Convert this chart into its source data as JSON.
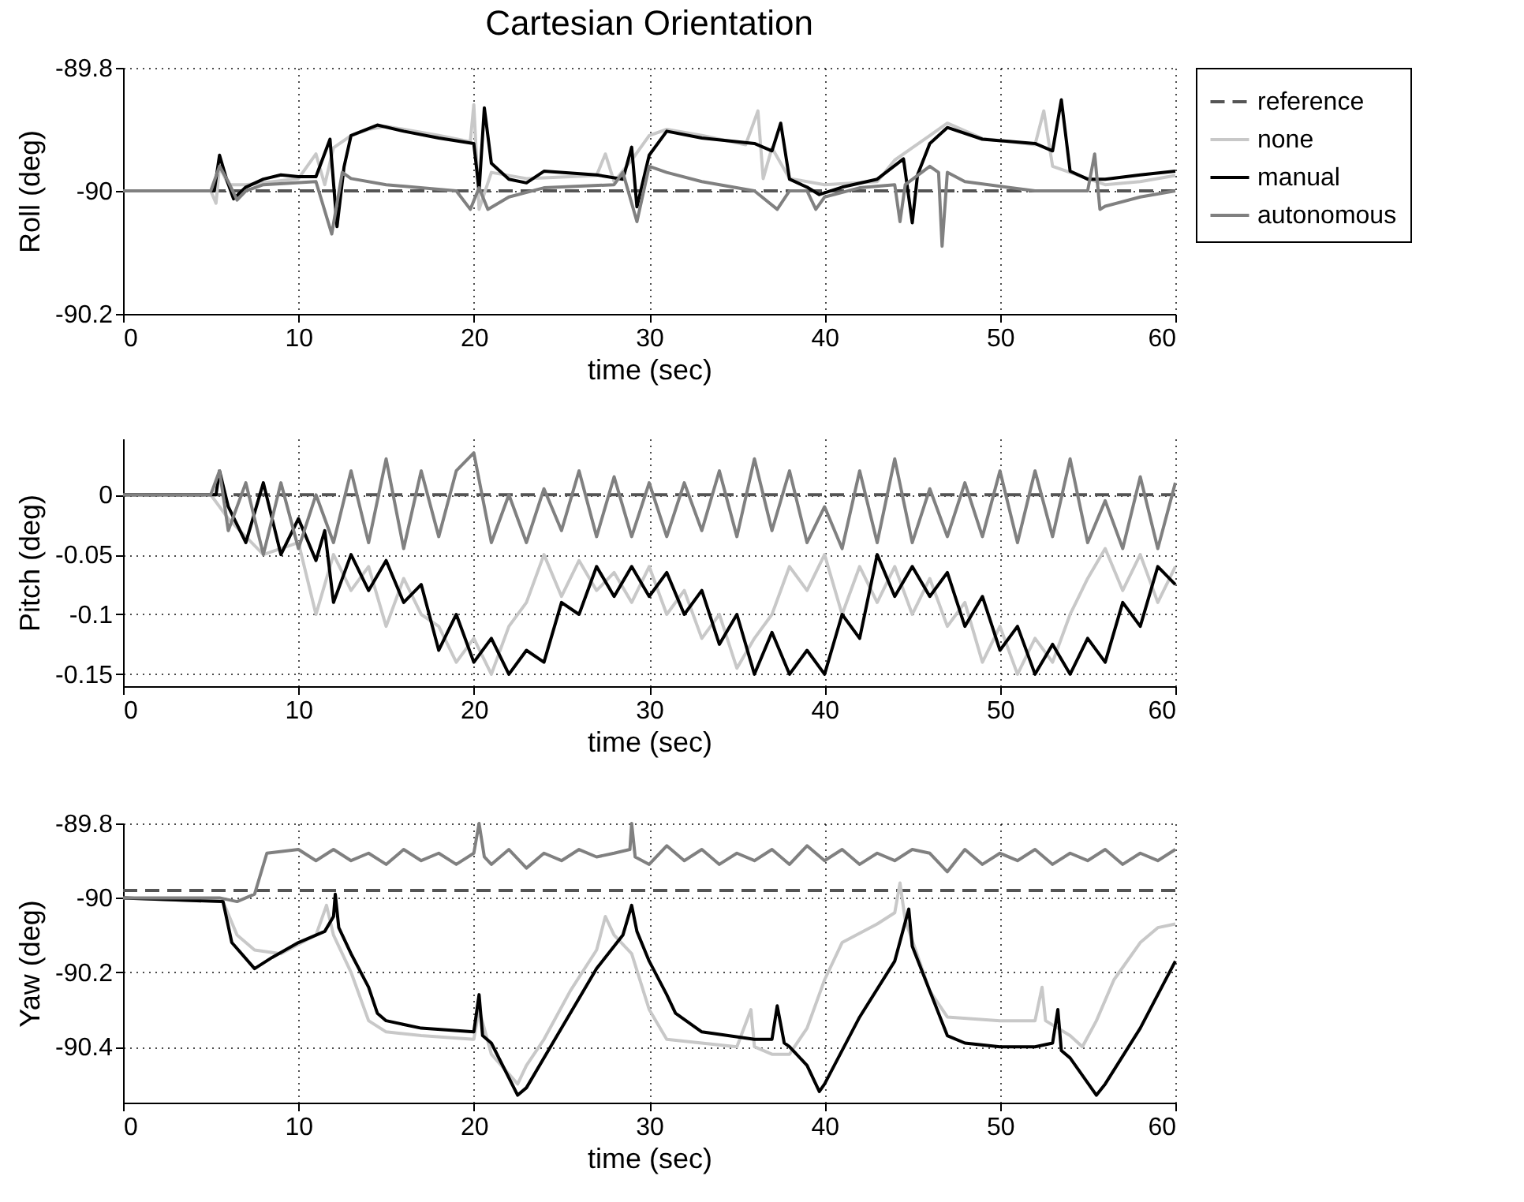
{
  "chart_data": [
    {
      "type": "line",
      "title": "Cartesian Orientation",
      "xlabel": "time (sec)",
      "ylabel": "Roll (deg)",
      "xlim": [
        0,
        60
      ],
      "xticks": [
        0,
        10,
        20,
        30,
        40,
        50,
        60
      ],
      "ylim": [
        -90.2,
        -89.8
      ],
      "yticks": [
        -90.2,
        -90,
        -89.8
      ],
      "grid": true,
      "legend": "top right",
      "series": [
        {
          "name": "reference",
          "color": "#555555",
          "line_style": "dashed",
          "x": [
            0,
            60
          ],
          "values": [
            -90,
            -90
          ]
        },
        {
          "name": "none",
          "color": "#c8c8c8",
          "line_style": "solid",
          "x": [
            0,
            5,
            5.3,
            5.5,
            6,
            7,
            10,
            11,
            11.5,
            12,
            13,
            14,
            15,
            18,
            19.8,
            20,
            20.3,
            21,
            23,
            27,
            27.5,
            28,
            29,
            30,
            31,
            33,
            35.5,
            36.2,
            36.5,
            37,
            38,
            40,
            43,
            44,
            45,
            46,
            47,
            49,
            52,
            52.5,
            53,
            54,
            56,
            58,
            60
          ],
          "values": [
            -90,
            -90,
            -90.02,
            -89.96,
            -89.99,
            -89.99,
            -89.98,
            -89.94,
            -89.99,
            -89.93,
            -89.91,
            -89.9,
            -89.895,
            -89.91,
            -89.92,
            -89.86,
            -90.03,
            -89.97,
            -89.98,
            -89.975,
            -89.94,
            -89.985,
            -89.95,
            -89.91,
            -89.9,
            -89.91,
            -89.925,
            -89.87,
            -89.98,
            -89.93,
            -89.98,
            -89.99,
            -89.985,
            -89.95,
            -89.93,
            -89.91,
            -89.89,
            -89.915,
            -89.925,
            -89.87,
            -89.96,
            -89.97,
            -89.99,
            -89.985,
            -89.975
          ]
        },
        {
          "name": "manual",
          "color": "#000000",
          "line_style": "solid",
          "x": [
            0,
            5.2,
            5.5,
            5.9,
            6.3,
            7,
            8,
            9,
            10,
            11,
            11.8,
            12.2,
            12.6,
            13,
            14.5,
            16,
            18,
            20,
            20.3,
            20.6,
            21,
            22,
            23,
            24,
            27,
            28.5,
            29,
            29.3,
            30,
            31,
            33,
            36,
            37,
            37.5,
            38,
            39,
            39.7,
            41,
            43,
            44.5,
            45,
            45.3,
            46,
            47,
            49,
            52,
            53,
            53.5,
            54,
            55,
            56,
            58,
            60
          ],
          "values": [
            -90,
            -90,
            -89.942,
            -89.981,
            -90.013,
            -89.994,
            -89.981,
            -89.974,
            -89.977,
            -89.977,
            -89.916,
            -90.058,
            -89.961,
            -89.91,
            -89.893,
            -89.903,
            -89.914,
            -89.923,
            -90,
            -89.865,
            -89.955,
            -89.981,
            -89.987,
            -89.968,
            -89.974,
            -89.981,
            -89.929,
            -90.026,
            -89.942,
            -89.903,
            -89.914,
            -89.923,
            -89.935,
            -89.89,
            -89.981,
            -89.994,
            -90.006,
            -89.994,
            -89.981,
            -89.948,
            -90.052,
            -89.974,
            -89.923,
            -89.897,
            -89.916,
            -89.923,
            -89.935,
            -89.852,
            -89.968,
            -89.981,
            -89.981,
            -89.974,
            -89.968
          ]
        },
        {
          "name": "autonomous",
          "color": "#808080",
          "line_style": "solid",
          "x": [
            0,
            5,
            5.5,
            6,
            6.5,
            7,
            8,
            11,
            11.9,
            12.5,
            13,
            15,
            19,
            19.8,
            20.3,
            20.8,
            22,
            24,
            28,
            28.5,
            29.3,
            30,
            31,
            33,
            36,
            37.3,
            38,
            39,
            39.5,
            40,
            42,
            44,
            44.3,
            44.6,
            46,
            46.5,
            46.7,
            47,
            48,
            52,
            55,
            55.4,
            55.7,
            56,
            58,
            60
          ],
          "values": [
            -90,
            -90,
            -89.96,
            -89.985,
            -90.015,
            -90,
            -89.99,
            -89.985,
            -90.07,
            -89.97,
            -89.98,
            -89.99,
            -90,
            -90.03,
            -89.995,
            -90.03,
            -90.01,
            -89.995,
            -89.99,
            -89.97,
            -90.05,
            -89.96,
            -89.97,
            -89.985,
            -90,
            -90.03,
            -90,
            -90,
            -90.03,
            -90.01,
            -89.995,
            -89.99,
            -90.05,
            -89.99,
            -89.96,
            -89.97,
            -90.09,
            -89.97,
            -89.985,
            -90,
            -90,
            -89.94,
            -90.03,
            -90.025,
            -90.01,
            -90
          ]
        }
      ]
    },
    {
      "type": "line",
      "xlabel": "time (sec)",
      "ylabel": "Pitch (deg)",
      "xlim": [
        0,
        60
      ],
      "xticks": [
        0,
        10,
        20,
        30,
        40,
        50,
        60
      ],
      "ylim": [
        -0.16,
        0.047
      ],
      "yticks": [
        -0.15,
        -0.1,
        -0.05,
        0
      ],
      "grid": true,
      "series": [
        {
          "color": "#555555",
          "line_style": "dashed",
          "x": [
            0,
            60
          ],
          "values": [
            0,
            0
          ]
        },
        {
          "color": "#c8c8c8",
          "line_style": "solid",
          "x": [
            0,
            5,
            6,
            8,
            10,
            11,
            12,
            13,
            14,
            15,
            16,
            17,
            18,
            19,
            20,
            21,
            22,
            23,
            24,
            25,
            26,
            27,
            28,
            29,
            30,
            31,
            32,
            33,
            34,
            35,
            36,
            37,
            38,
            39,
            40,
            41,
            42,
            43,
            44,
            45,
            46,
            47,
            48,
            49,
            50,
            51,
            52,
            53,
            54,
            55,
            56,
            57,
            58,
            59,
            60
          ],
          "values": [
            0,
            0,
            -0.02,
            -0.05,
            -0.04,
            -0.1,
            -0.05,
            -0.08,
            -0.06,
            -0.11,
            -0.07,
            -0.1,
            -0.11,
            -0.14,
            -0.12,
            -0.15,
            -0.11,
            -0.09,
            -0.05,
            -0.085,
            -0.055,
            -0.08,
            -0.065,
            -0.09,
            -0.06,
            -0.1,
            -0.08,
            -0.12,
            -0.1,
            -0.145,
            -0.12,
            -0.1,
            -0.06,
            -0.08,
            -0.05,
            -0.1,
            -0.06,
            -0.09,
            -0.06,
            -0.1,
            -0.07,
            -0.11,
            -0.09,
            -0.14,
            -0.11,
            -0.15,
            -0.12,
            -0.14,
            -0.1,
            -0.07,
            -0.045,
            -0.08,
            -0.05,
            -0.09,
            -0.06
          ]
        },
        {
          "color": "#000000",
          "line_style": "solid",
          "x": [
            0,
            5.3,
            5.5,
            6,
            7,
            8,
            9,
            10,
            11,
            11.5,
            12,
            13,
            14,
            15,
            16,
            17,
            18,
            19,
            20,
            21,
            22,
            23,
            24,
            25,
            26,
            27,
            28,
            29,
            30,
            31,
            32,
            33,
            34,
            35,
            36,
            37,
            38,
            39,
            40,
            41,
            42,
            43,
            44,
            45,
            46,
            47,
            48,
            49,
            50,
            51,
            52,
            53,
            54,
            55,
            56,
            57,
            58,
            59,
            60
          ],
          "values": [
            0,
            0,
            0.02,
            -0.01,
            -0.04,
            0.01,
            -0.05,
            -0.02,
            -0.055,
            -0.03,
            -0.09,
            -0.05,
            -0.08,
            -0.055,
            -0.09,
            -0.075,
            -0.13,
            -0.1,
            -0.14,
            -0.12,
            -0.15,
            -0.13,
            -0.14,
            -0.09,
            -0.1,
            -0.06,
            -0.085,
            -0.06,
            -0.085,
            -0.065,
            -0.1,
            -0.08,
            -0.125,
            -0.1,
            -0.15,
            -0.115,
            -0.15,
            -0.13,
            -0.15,
            -0.1,
            -0.12,
            -0.05,
            -0.085,
            -0.06,
            -0.085,
            -0.065,
            -0.11,
            -0.085,
            -0.13,
            -0.11,
            -0.15,
            -0.125,
            -0.15,
            -0.12,
            -0.14,
            -0.09,
            -0.11,
            -0.06,
            -0.075
          ]
        },
        {
          "color": "#808080",
          "line_style": "solid",
          "x": [
            0,
            5,
            5.5,
            6,
            7,
            8,
            9,
            10,
            11,
            12,
            13,
            14,
            15,
            16,
            17,
            18,
            19,
            20,
            21,
            22,
            23,
            24,
            25,
            26,
            27,
            28,
            29,
            30,
            31,
            32,
            33,
            34,
            35,
            36,
            37,
            38,
            39,
            40,
            41,
            42,
            43,
            44,
            45,
            46,
            47,
            48,
            49,
            50,
            51,
            52,
            53,
            54,
            55,
            56,
            57,
            58,
            59,
            60
          ],
          "values": [
            0,
            0,
            0.02,
            -0.03,
            0.01,
            -0.05,
            0.01,
            -0.045,
            0,
            -0.04,
            0.02,
            -0.04,
            0.03,
            -0.045,
            0.02,
            -0.035,
            0.02,
            0.035,
            -0.04,
            0,
            -0.04,
            0.005,
            -0.03,
            0.02,
            -0.035,
            0.015,
            -0.035,
            0.01,
            -0.035,
            0.01,
            -0.03,
            0.02,
            -0.035,
            0.03,
            -0.03,
            0.02,
            -0.04,
            -0.01,
            -0.045,
            0.02,
            -0.04,
            0.03,
            -0.04,
            0.005,
            -0.035,
            0.01,
            -0.035,
            0.02,
            -0.04,
            0.02,
            -0.035,
            0.03,
            -0.04,
            -0.005,
            -0.045,
            0.015,
            -0.045,
            0.01
          ]
        }
      ]
    },
    {
      "type": "line",
      "xlabel": "time (sec)",
      "ylabel": "Yaw (deg)",
      "xlim": [
        0,
        60
      ],
      "xticks": [
        0,
        10,
        20,
        30,
        40,
        50,
        60
      ],
      "ylim": [
        -90.55,
        -89.8
      ],
      "yticks": [
        -90.4,
        -90.2,
        -90,
        -89.8
      ],
      "grid": true,
      "series": [
        {
          "color": "#555555",
          "line_style": "dashed",
          "x": [
            0,
            60
          ],
          "values": [
            -89.98,
            -89.98
          ]
        },
        {
          "color": "#c8c8c8",
          "line_style": "solid",
          "x": [
            0,
            5.7,
            6.5,
            7.5,
            9,
            11,
            11.6,
            12,
            13,
            14,
            15,
            17,
            20,
            20.3,
            21,
            22.5,
            23,
            24,
            25.5,
            27,
            27.5,
            28,
            29,
            30,
            31,
            33,
            35,
            35.8,
            36,
            37,
            38,
            39,
            40,
            41,
            43,
            44,
            44.3,
            44.6,
            46,
            47,
            50,
            52,
            52.4,
            52.6,
            54,
            54.7,
            55.5,
            56.5,
            58,
            59,
            60
          ],
          "values": [
            -90,
            -90.01,
            -90.1,
            -90.14,
            -90.15,
            -90.1,
            -90.02,
            -90.1,
            -90.2,
            -90.33,
            -90.36,
            -90.37,
            -90.38,
            -90.3,
            -90.42,
            -90.5,
            -90.45,
            -90.38,
            -90.25,
            -90.14,
            -90.05,
            -90.1,
            -90.15,
            -90.3,
            -90.38,
            -90.39,
            -90.4,
            -90.3,
            -90.4,
            -90.42,
            -90.42,
            -90.35,
            -90.22,
            -90.12,
            -90.07,
            -90.04,
            -89.96,
            -90.06,
            -90.25,
            -90.32,
            -90.33,
            -90.33,
            -90.24,
            -90.33,
            -90.37,
            -90.4,
            -90.33,
            -90.22,
            -90.12,
            -90.08,
            -90.07
          ]
        },
        {
          "color": "#000000",
          "line_style": "solid",
          "x": [
            0,
            5.7,
            6.2,
            7.5,
            8.5,
            10,
            11.5,
            12,
            12.1,
            12.3,
            13,
            14,
            14.5,
            15,
            17,
            20,
            20.3,
            20.5,
            21,
            22.5,
            23,
            25,
            27,
            28.5,
            29,
            29.3,
            30,
            31,
            31.5,
            33,
            36,
            37,
            37.3,
            37.7,
            38,
            39,
            39.7,
            40,
            42,
            44,
            44.8,
            45,
            46,
            47,
            48,
            50,
            52,
            53,
            53.3,
            53.5,
            54,
            55.5,
            56,
            58,
            60
          ],
          "values": [
            -90,
            -90.01,
            -90.12,
            -90.19,
            -90.16,
            -90.12,
            -90.09,
            -90.05,
            -89.99,
            -90.08,
            -90.15,
            -90.24,
            -90.31,
            -90.33,
            -90.35,
            -90.36,
            -90.26,
            -90.37,
            -90.39,
            -90.53,
            -90.51,
            -90.35,
            -90.19,
            -90.1,
            -90.02,
            -90.09,
            -90.17,
            -90.26,
            -90.31,
            -90.36,
            -90.38,
            -90.38,
            -90.29,
            -90.39,
            -90.4,
            -90.45,
            -90.52,
            -90.5,
            -90.32,
            -90.17,
            -90.03,
            -90.13,
            -90.25,
            -90.37,
            -90.39,
            -90.4,
            -90.4,
            -90.39,
            -90.3,
            -90.41,
            -90.43,
            -90.53,
            -90.5,
            -90.35,
            -90.17
          ]
        },
        {
          "color": "#808080",
          "line_style": "solid",
          "x": [
            0,
            5.5,
            6.5,
            7.5,
            8.2,
            10,
            11,
            12,
            13,
            14,
            15,
            16,
            17,
            18,
            19,
            20,
            20.3,
            20.6,
            21,
            22,
            23,
            24,
            25,
            26,
            27,
            28,
            28.9,
            29,
            29.2,
            30,
            31,
            32,
            33,
            34,
            35,
            36,
            37,
            38,
            39,
            40,
            41,
            42,
            43,
            44,
            45,
            46,
            47,
            48,
            49,
            50,
            51,
            52,
            53,
            54,
            55,
            56,
            57,
            58,
            59,
            60
          ],
          "values": [
            -90,
            -90,
            -90.01,
            -89.99,
            -89.88,
            -89.87,
            -89.9,
            -89.87,
            -89.9,
            -89.88,
            -89.91,
            -89.87,
            -89.9,
            -89.88,
            -89.91,
            -89.88,
            -89.8,
            -89.89,
            -89.91,
            -89.87,
            -89.92,
            -89.88,
            -89.9,
            -89.87,
            -89.89,
            -89.88,
            -89.87,
            -89.8,
            -89.89,
            -89.91,
            -89.86,
            -89.9,
            -89.87,
            -89.91,
            -89.88,
            -89.9,
            -89.87,
            -89.91,
            -89.86,
            -89.9,
            -89.87,
            -89.91,
            -89.88,
            -89.9,
            -89.87,
            -89.88,
            -89.93,
            -89.87,
            -89.91,
            -89.88,
            -89.9,
            -89.87,
            -89.91,
            -89.88,
            -89.9,
            -89.87,
            -89.91,
            -89.88,
            -89.9,
            -89.87
          ]
        }
      ]
    }
  ]
}
